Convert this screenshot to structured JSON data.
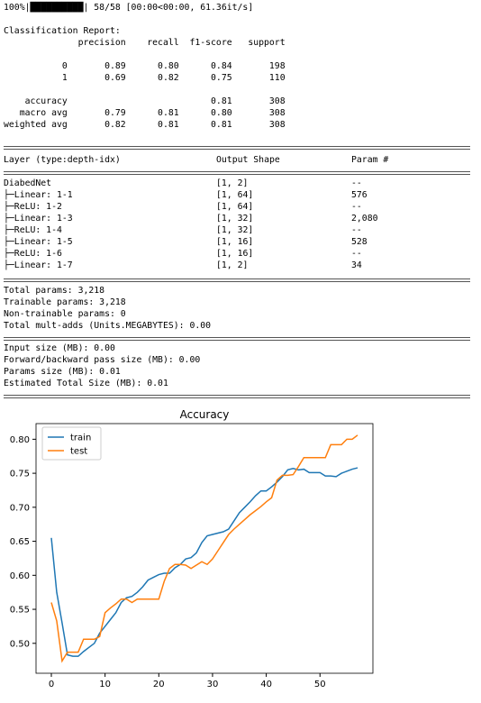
{
  "progress": "100%|██████████| 58/58 [00:00<00:00, 61.36it/s]",
  "report": [
    "Classification Report:",
    "              precision    recall  f1-score   support",
    "           0       0.89      0.80      0.84       198",
    "           1       0.69      0.82      0.75       110",
    "    accuracy                           0.81       308",
    "   macro avg       0.79      0.81      0.80       308",
    "weighted avg       0.82      0.81      0.81       308"
  ],
  "summary": {
    "header": [
      "Layer (type:depth-idx)",
      "Output Shape",
      "Param #"
    ],
    "rows": [
      [
        "DiabedNet",
        "[1, 2]",
        "--"
      ],
      [
        "├─Linear: 1-1",
        "[1, 64]",
        "576"
      ],
      [
        "├─ReLU: 1-2",
        "[1, 64]",
        "--"
      ],
      [
        "├─Linear: 1-3",
        "[1, 32]",
        "2,080"
      ],
      [
        "├─ReLU: 1-4",
        "[1, 32]",
        "--"
      ],
      [
        "├─Linear: 1-5",
        "[1, 16]",
        "528"
      ],
      [
        "├─ReLU: 1-6",
        "[1, 16]",
        "--"
      ],
      [
        "├─Linear: 1-7",
        "[1, 2]",
        "34"
      ]
    ],
    "totals": [
      "Total params: 3,218",
      "Trainable params: 3,218",
      "Non-trainable params: 0",
      "Total mult-adds (Units.MEGABYTES): 0.00"
    ],
    "sizes": [
      "Input size (MB): 0.00",
      "Forward/backward pass size (MB): 0.00",
      "Params size (MB): 0.01",
      "Estimated Total Size (MB): 0.01"
    ]
  },
  "chart_data": {
    "type": "line",
    "title": "Accuracy",
    "x": [
      0,
      1,
      2,
      3,
      4,
      5,
      6,
      7,
      8,
      9,
      10,
      11,
      12,
      13,
      14,
      15,
      16,
      17,
      18,
      19,
      20,
      21,
      22,
      23,
      24,
      25,
      26,
      27,
      28,
      29,
      30,
      31,
      32,
      33,
      34,
      35,
      36,
      37,
      38,
      39,
      40,
      41,
      42,
      43,
      44,
      45,
      46,
      47,
      48,
      49,
      50,
      51,
      52,
      53,
      54,
      55,
      56,
      57
    ],
    "series": [
      {
        "name": "train",
        "color": "#1f77b4",
        "values": [
          0.655,
          0.575,
          0.53,
          0.483,
          0.481,
          0.481,
          0.488,
          0.494,
          0.5,
          0.515,
          0.525,
          0.535,
          0.545,
          0.56,
          0.567,
          0.569,
          0.575,
          0.583,
          0.593,
          0.597,
          0.601,
          0.603,
          0.603,
          0.611,
          0.616,
          0.624,
          0.626,
          0.633,
          0.648,
          0.658,
          0.66,
          0.662,
          0.664,
          0.668,
          0.68,
          0.692,
          0.7,
          0.708,
          0.717,
          0.724,
          0.724,
          0.73,
          0.737,
          0.745,
          0.755,
          0.757,
          0.755,
          0.756,
          0.751,
          0.751,
          0.751,
          0.746,
          0.746,
          0.745,
          0.75,
          0.753,
          0.756,
          0.758
        ]
      },
      {
        "name": "test",
        "color": "#ff7f0e",
        "values": [
          0.56,
          0.533,
          0.474,
          0.487,
          0.487,
          0.487,
          0.506,
          0.506,
          0.506,
          0.51,
          0.545,
          0.552,
          0.558,
          0.565,
          0.565,
          0.56,
          0.565,
          0.565,
          0.565,
          0.565,
          0.565,
          0.591,
          0.61,
          0.616,
          0.616,
          0.615,
          0.61,
          0.615,
          0.62,
          0.616,
          0.624,
          0.636,
          0.648,
          0.66,
          0.668,
          0.675,
          0.682,
          0.689,
          0.695,
          0.701,
          0.708,
          0.714,
          0.74,
          0.747,
          0.747,
          0.748,
          0.76,
          0.773,
          0.773,
          0.773,
          0.773,
          0.773,
          0.792,
          0.792,
          0.792,
          0.8,
          0.8,
          0.806
        ]
      }
    ],
    "xlim": [
      -2.85,
      59.85
    ],
    "ylim": [
      0.456,
      0.823
    ],
    "xticks": [
      0,
      10,
      20,
      30,
      40,
      50
    ],
    "yticks": [
      {
        "value": 0.5,
        "label": "0.50"
      },
      {
        "value": 0.55,
        "label": "0.55"
      },
      {
        "value": 0.6,
        "label": "0.60"
      },
      {
        "value": 0.65,
        "label": "0.65"
      },
      {
        "value": 0.7,
        "label": "0.70"
      },
      {
        "value": 0.75,
        "label": "0.75"
      },
      {
        "value": 0.8,
        "label": "0.80"
      }
    ],
    "legend": "upper left"
  }
}
